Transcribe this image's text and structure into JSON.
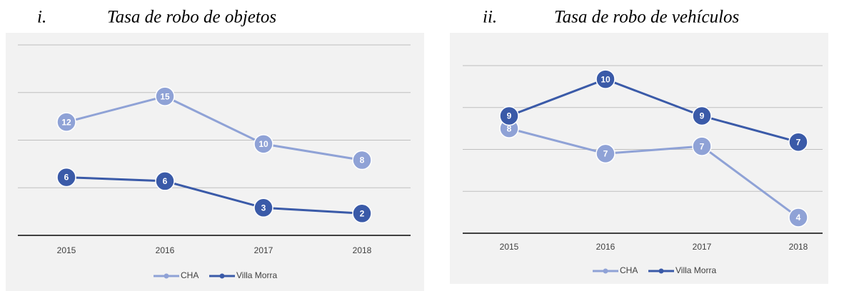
{
  "chart_data": [
    {
      "type": "line",
      "label": "i.",
      "title": "Tasa de robo de objetos",
      "categories": [
        "2015",
        "2016",
        "2017",
        "2018"
      ],
      "series": [
        {
          "name": "CHA",
          "color": "#8fa2d6",
          "values": [
            11.9,
            14.6,
            9.6,
            7.9
          ],
          "value_labels": [
            "12",
            "15",
            "10",
            "8"
          ]
        },
        {
          "name": "Villa Morra",
          "color": "#3a5aa8",
          "values": [
            6.1,
            5.7,
            2.9,
            2.3
          ],
          "value_labels": [
            "6",
            "6",
            "3",
            "2"
          ]
        }
      ],
      "ylim": [
        0,
        20
      ],
      "yticks": [
        0,
        5,
        10,
        15,
        20
      ],
      "grid": true,
      "legend": "bottom"
    },
    {
      "type": "line",
      "label": "ii.",
      "title": "Tasa de robo de vehículos",
      "categories": [
        "2015",
        "2016",
        "2017",
        "2018"
      ],
      "series": [
        {
          "name": "CHA",
          "color": "#8fa2d6",
          "values": [
            8.0,
            6.8,
            7.15,
            3.75
          ],
          "value_labels": [
            "8",
            "7",
            "7",
            "4"
          ]
        },
        {
          "name": "Villa Morra",
          "color": "#3a5aa8",
          "values": [
            8.6,
            10.35,
            8.6,
            7.35
          ],
          "value_labels": [
            "9",
            "10",
            "9",
            "7"
          ]
        }
      ],
      "ylim": [
        3,
        11
      ],
      "yticks": [
        3,
        5,
        7,
        9,
        11
      ],
      "grid": true,
      "legend": "bottom"
    }
  ]
}
